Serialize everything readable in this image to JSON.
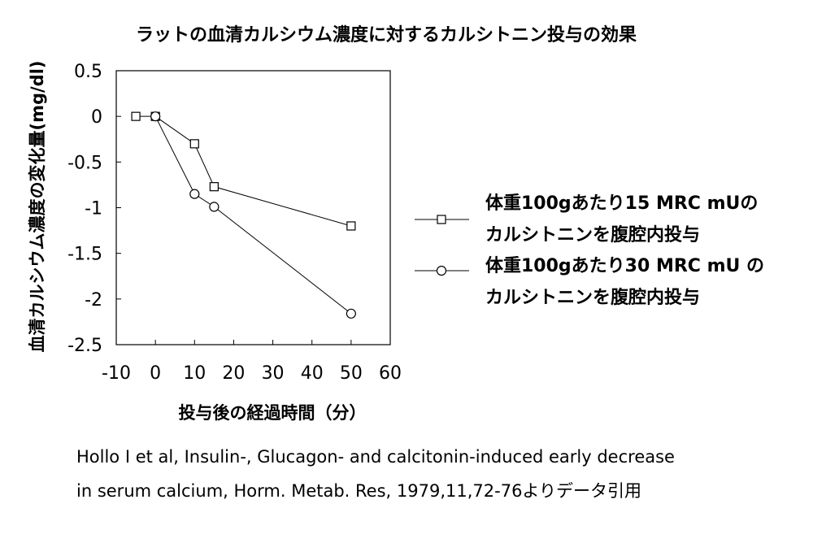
{
  "chart_data": {
    "type": "line",
    "title": "ラットの血清カルシウム濃度に対するカルシトニン投与の効果",
    "xlabel": "投与後の経過時間（分）",
    "ylabel": "血清カルシウム濃度の変化量(mg/dl)",
    "xlim": [
      -10,
      60
    ],
    "ylim": [
      -2.5,
      0.5
    ],
    "xticks": [
      -10,
      0,
      10,
      20,
      30,
      40,
      50,
      60
    ],
    "yticks": [
      0.5,
      0,
      -0.5,
      -1,
      -1.5,
      -2,
      -2.5
    ],
    "xtick_labels": [
      "-10",
      "0",
      "10",
      "20",
      "30",
      "40",
      "50",
      "60"
    ],
    "ytick_labels": [
      "0.5",
      "0",
      "-0.5",
      "-1",
      "-1.5",
      "-2",
      "-2.5"
    ],
    "series": [
      {
        "marker": "square",
        "legend": [
          "体重100gあたり15 MRC mUの",
          "カルシトニンを腹腔内投与"
        ],
        "x": [
          -5,
          0,
          10,
          15,
          50
        ],
        "y": [
          0,
          0,
          -0.3,
          -0.77,
          -1.2
        ]
      },
      {
        "marker": "circle",
        "legend": [
          "体重100gあたり30 MRC mU の",
          "カルシトニンを腹腔内投与"
        ],
        "x": [
          0,
          10,
          15,
          50
        ],
        "y": [
          0,
          -0.85,
          -0.99,
          -2.16
        ]
      }
    ],
    "grid": false,
    "legend_position": "right"
  },
  "citation": {
    "line1": "Hollo I et al, Insulin-, Glucagon- and calcitonin-induced early decrease",
    "line2": "in serum calcium, Horm. Metab. Res, 1979,11,72-76よりデータ引用"
  }
}
